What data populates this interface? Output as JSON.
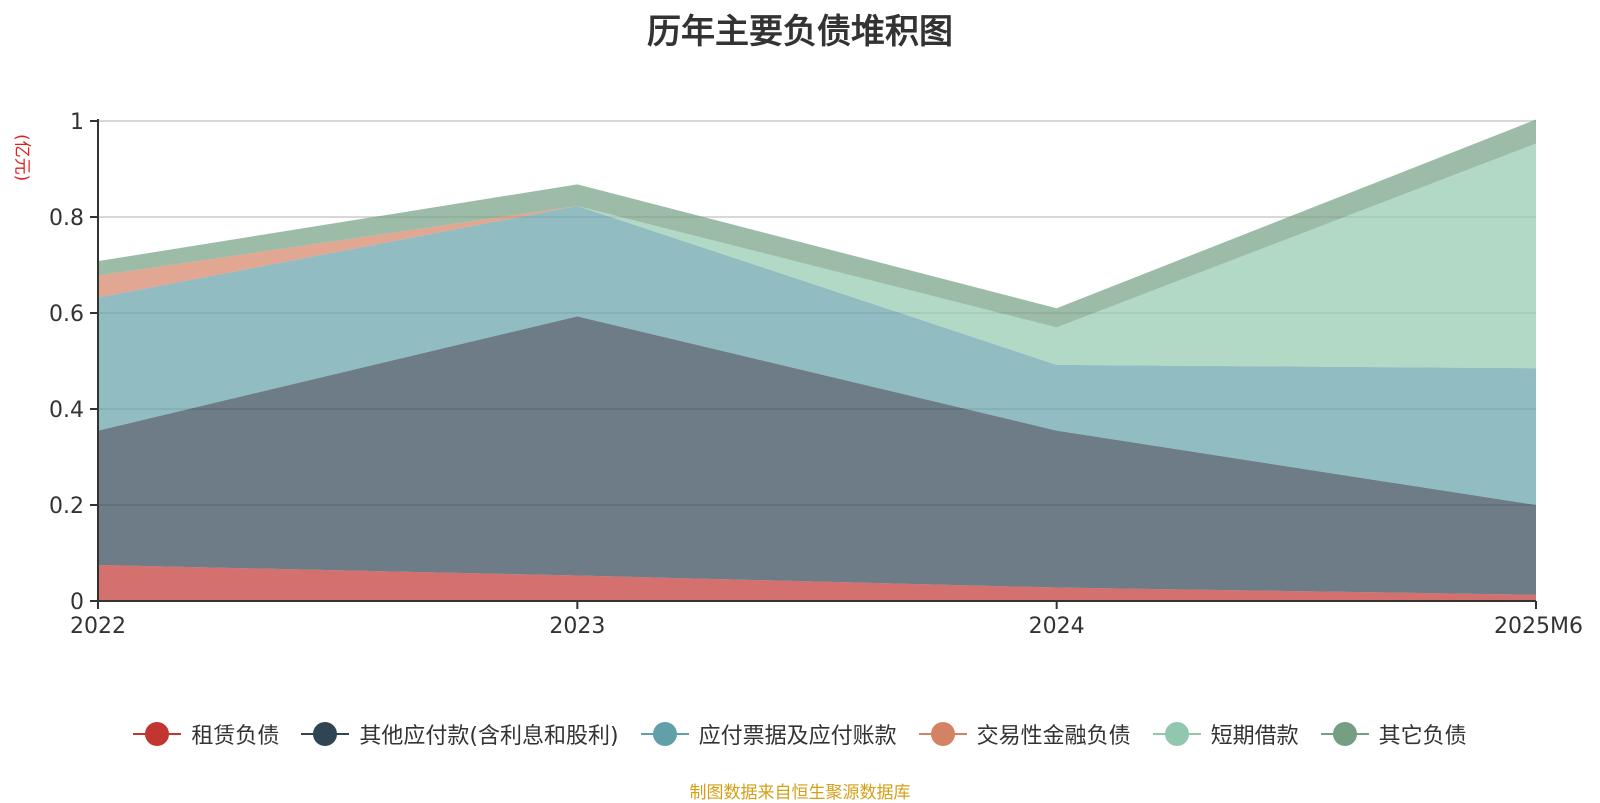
{
  "title": "历年主要负债堆积图",
  "unit": "(亿元)",
  "source": "制图数据来自恒生聚源数据库",
  "chart_data": {
    "type": "area",
    "stacked": true,
    "title": "历年主要负债堆积图",
    "ylabel": "(亿元)",
    "categories": [
      "2022",
      "2023",
      "2024",
      "2025M6"
    ],
    "ylim": [
      0,
      1
    ],
    "yticks": [
      "0",
      "0.2",
      "0.4",
      "0.6",
      "0.8",
      "1"
    ],
    "grid": true,
    "legend_position": "bottom",
    "series": [
      {
        "name": "租赁负债",
        "color": "#c23531",
        "values": [
          0.075,
          0.053,
          0.028,
          0.013
        ]
      },
      {
        "name": "其他应付款(含利息和股利)",
        "color": "#2f4554",
        "values": [
          0.28,
          0.54,
          0.327,
          0.187
        ]
      },
      {
        "name": "应付票据及应付账款",
        "color": "#61a0a8",
        "values": [
          0.277,
          0.23,
          0.137,
          0.285
        ]
      },
      {
        "name": "交易性金融负债",
        "color": "#d48265",
        "values": [
          0.046,
          0.0,
          0.0,
          0.0
        ]
      },
      {
        "name": "短期借款",
        "color": "#91c7ae",
        "values": [
          0.0,
          0.0,
          0.078,
          0.468
        ]
      },
      {
        "name": "其它负债",
        "color": "#749f83",
        "values": [
          0.03,
          0.045,
          0.04,
          0.05
        ]
      }
    ]
  }
}
